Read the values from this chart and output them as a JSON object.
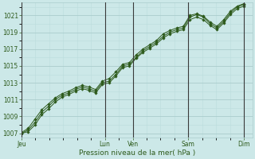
{
  "title": "",
  "xlabel": "Pression niveau de la mer( hPa )",
  "ylabel": "",
  "bg_color": "#cce8e8",
  "grid_color_major": "#aacccc",
  "grid_color_minor": "#bbdddd",
  "line_color": "#2d5a1b",
  "dark_line_color": "#3a3a3a",
  "ylim": [
    1006.5,
    1022.5
  ],
  "yticks": [
    1007,
    1009,
    1011,
    1013,
    1015,
    1017,
    1019,
    1021
  ],
  "day_labels": [
    "Jeu",
    "Lun",
    "Ven",
    "Sam",
    "Dim"
  ],
  "day_positions": [
    0.0,
    3.0,
    4.0,
    6.0,
    8.0
  ],
  "xlim": [
    0,
    8.3
  ],
  "num_points": 34,
  "series": [
    [
      1007.0,
      1007.4,
      1008.3,
      1009.5,
      1010.2,
      1011.0,
      1011.5,
      1011.8,
      1012.2,
      1012.5,
      1012.3,
      1012.0,
      1013.0,
      1013.2,
      1014.0,
      1015.0,
      1015.2,
      1016.0,
      1016.8,
      1017.3,
      1017.8,
      1018.5,
      1019.0,
      1019.3,
      1019.5,
      1020.8,
      1021.1,
      1020.8,
      1020.0,
      1019.5,
      1020.3,
      1021.3,
      1022.0,
      1022.3
    ],
    [
      1007.1,
      1007.6,
      1008.7,
      1009.8,
      1010.5,
      1011.2,
      1011.7,
      1012.0,
      1012.4,
      1012.7,
      1012.5,
      1012.2,
      1013.2,
      1013.5,
      1014.3,
      1015.2,
      1015.4,
      1016.3,
      1017.0,
      1017.5,
      1018.0,
      1018.8,
      1019.2,
      1019.5,
      1019.7,
      1021.0,
      1021.2,
      1020.9,
      1020.2,
      1019.7,
      1020.5,
      1021.5,
      1022.1,
      1022.4
    ],
    [
      1007.0,
      1007.2,
      1008.0,
      1009.2,
      1009.9,
      1010.7,
      1011.3,
      1011.6,
      1012.0,
      1012.3,
      1012.1,
      1011.8,
      1012.8,
      1013.0,
      1013.8,
      1014.8,
      1015.0,
      1015.9,
      1016.6,
      1017.1,
      1017.6,
      1018.3,
      1018.8,
      1019.1,
      1019.3,
      1020.5,
      1020.8,
      1020.5,
      1019.8,
      1019.3,
      1020.1,
      1021.1,
      1021.8,
      1022.1
    ]
  ]
}
